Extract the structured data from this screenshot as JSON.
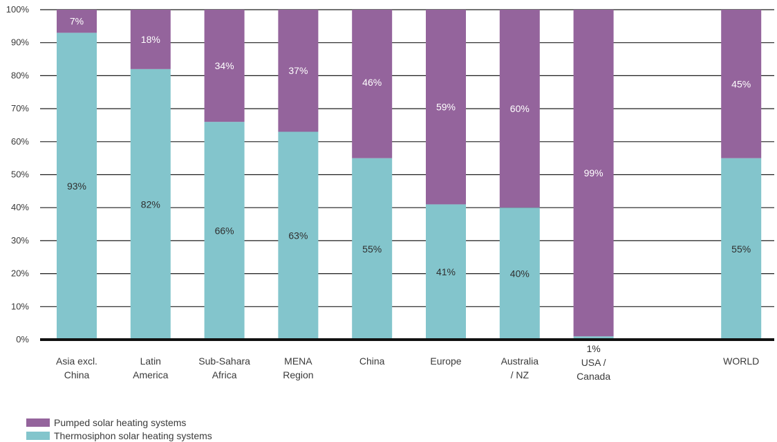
{
  "chart_data": {
    "type": "bar",
    "stacked": true,
    "categories": [
      [
        "Asia excl.",
        "China"
      ],
      [
        "Latin",
        "America"
      ],
      [
        "Sub-Sahara",
        "Africa"
      ],
      [
        "MENA",
        "Region"
      ],
      [
        "China"
      ],
      [
        "Europe"
      ],
      [
        "Australia",
        "/ NZ"
      ],
      [
        "USA /",
        "Canada"
      ],
      [],
      [
        "WORLD"
      ]
    ],
    "series": [
      {
        "name": "Thermosiphon solar heating systems",
        "color": "#83c5cc",
        "values": [
          93,
          82,
          66,
          63,
          55,
          41,
          40,
          1,
          null,
          55
        ],
        "labels": [
          "93%",
          "82%",
          "66%",
          "63%",
          "55%",
          "41%",
          "40%",
          "1%",
          null,
          "55%"
        ]
      },
      {
        "name": "Pumped solar heating systems",
        "color": "#94649c",
        "values": [
          7,
          18,
          34,
          37,
          46,
          59,
          60,
          99,
          null,
          45
        ],
        "labels": [
          "7%",
          "18%",
          "34%",
          "37%",
          "46%",
          "59%",
          "60%",
          "99%",
          null,
          "45%"
        ]
      }
    ],
    "ylim": [
      0,
      100
    ],
    "yticks": [
      "0%",
      "10%",
      "20%",
      "30%",
      "40%",
      "50%",
      "60%",
      "70%",
      "80%",
      "90%",
      "100%"
    ],
    "grid": true,
    "legend": "bottom-left",
    "legend_order": [
      1,
      0
    ]
  }
}
